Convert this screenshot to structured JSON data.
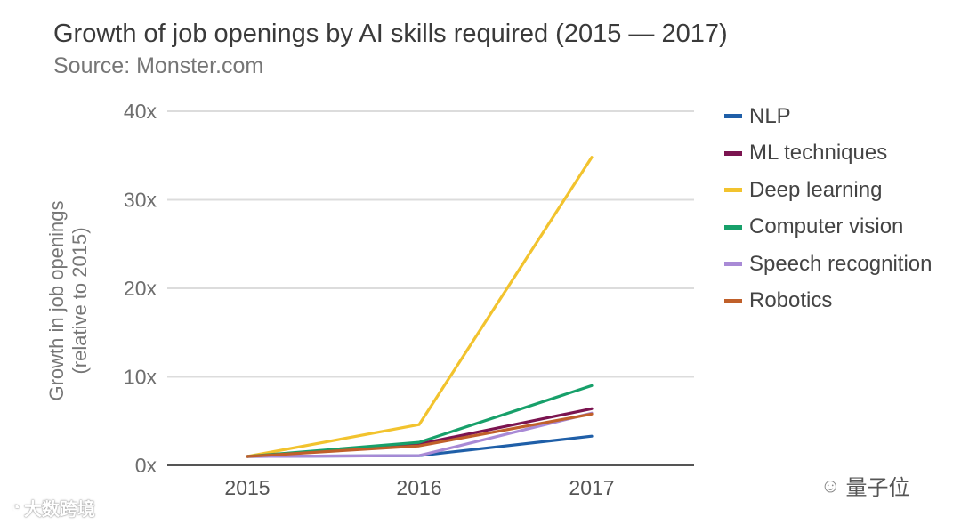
{
  "chart_data": {
    "type": "line",
    "title": "Growth of job openings by AI skills required (2015 — 2017)",
    "subtitle": "Source: Monster.com",
    "xlabel": "",
    "ylabel": "Growth in job openings (relative to 2015)",
    "x": [
      "2015",
      "2016",
      "2017"
    ],
    "ylim": [
      0,
      40
    ],
    "yticks": [
      0,
      10,
      20,
      30,
      40
    ],
    "ytick_labels": [
      "0x",
      "10x",
      "20x",
      "30x",
      "40x"
    ],
    "grid": true,
    "legend_position": "right",
    "series": [
      {
        "name": "NLP",
        "color": "#1f5fa8",
        "values": [
          1,
          1.1,
          3.3
        ]
      },
      {
        "name": "ML techniques",
        "color": "#7b1450",
        "values": [
          1,
          2.4,
          6.4
        ]
      },
      {
        "name": "Deep learning",
        "color": "#f2c32e",
        "values": [
          1,
          4.6,
          34.8
        ]
      },
      {
        "name": "Computer vision",
        "color": "#17a06a",
        "values": [
          1,
          2.6,
          9.0
        ]
      },
      {
        "name": "Speech recognition",
        "color": "#a98ad6",
        "values": [
          1,
          1.1,
          5.9
        ]
      },
      {
        "name": "Robotics",
        "color": "#c0602a",
        "values": [
          1,
          2.2,
          5.8
        ]
      }
    ]
  },
  "watermarks": {
    "left": "大数跨境",
    "left_icon": "weibo-icon",
    "right": "量子位",
    "right_icon": "wechat-icon"
  }
}
